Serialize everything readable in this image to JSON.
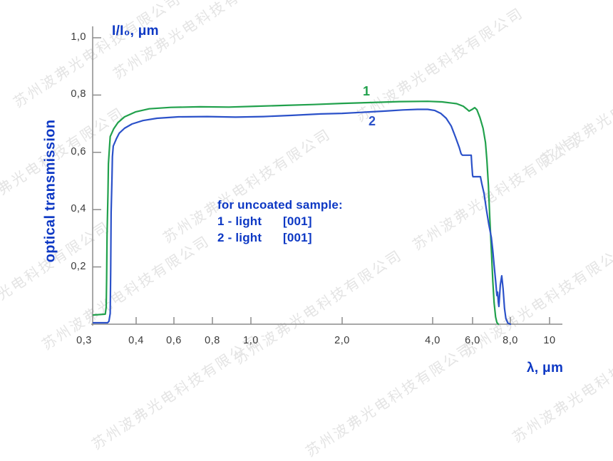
{
  "watermark": {
    "text": "苏州波弗光电科技有限公司"
  },
  "colors": {
    "accent_blue": "#0d38c4",
    "curve1_green": "#21a14c",
    "curve2_blue": "#2b51c9",
    "axis_gray": "#8c8c8c",
    "tick_label_gray": "#3a3a3a",
    "watermark_gray": "#e4e4e4"
  },
  "y_axis": {
    "title": "I/I₀, μm",
    "name": "optical transmission",
    "ticks": [
      {
        "label": "1,0",
        "value": 1.0
      },
      {
        "label": "0,8",
        "value": 0.8
      },
      {
        "label": "0,6",
        "value": 0.6
      },
      {
        "label": "0,4",
        "value": 0.4
      },
      {
        "label": "0,2",
        "value": 0.2
      }
    ]
  },
  "x_axis": {
    "title": "λ, μm",
    "ticks": [
      {
        "label": "0,3",
        "value": 0.3
      },
      {
        "label": "0,4",
        "value": 0.4
      },
      {
        "label": "0,6",
        "value": 0.6
      },
      {
        "label": "0,8",
        "value": 0.8
      },
      {
        "label": "1,0",
        "value": 1.0
      },
      {
        "label": "2,0",
        "value": 2.0
      },
      {
        "label": "4,0",
        "value": 4.0
      },
      {
        "label": "6,0",
        "value": 6.0
      },
      {
        "label": "8,0",
        "value": 8.0
      },
      {
        "label": "10",
        "value": 10
      }
    ]
  },
  "annotation": {
    "heading": "for uncoated sample:",
    "items": [
      {
        "label": "1 - light",
        "value": "[001]"
      },
      {
        "label": "2 - light",
        "value": "[001]"
      }
    ]
  },
  "curve_labels": {
    "curve1": "1",
    "curve2": "2"
  },
  "chart_data": {
    "type": "line",
    "title": "",
    "xlabel": "λ, μm",
    "ylabel": "optical transmission, I/I₀",
    "x_scale": "log-like (ticks 0.3 0.4 0.6 0.8 1.0 2.0 4.0 6.0 8.0 10)",
    "xlim": [
      0.3,
      10
    ],
    "ylim": [
      0,
      1.0
    ],
    "grid": false,
    "legend_position": "inline numbers on curves",
    "series": [
      {
        "name": "1 - light [001] (uncoated sample)",
        "color": "#21a14c",
        "points": [
          [
            0.3,
            0.032
          ],
          [
            0.325,
            0.035
          ],
          [
            0.327,
            0.06
          ],
          [
            0.328,
            0.16
          ],
          [
            0.329,
            0.31
          ],
          [
            0.331,
            0.46
          ],
          [
            0.332,
            0.56
          ],
          [
            0.334,
            0.61
          ],
          [
            0.336,
            0.655
          ],
          [
            0.344,
            0.682
          ],
          [
            0.354,
            0.704
          ],
          [
            0.37,
            0.724
          ],
          [
            0.398,
            0.741
          ],
          [
            0.46,
            0.752
          ],
          [
            0.58,
            0.757
          ],
          [
            0.73,
            0.759
          ],
          [
            0.88,
            0.758
          ],
          [
            1.04,
            0.761
          ],
          [
            1.3,
            0.764
          ],
          [
            1.61,
            0.767
          ],
          [
            2.0,
            0.771
          ],
          [
            2.5,
            0.774
          ],
          [
            3.1,
            0.777
          ],
          [
            3.85,
            0.778
          ],
          [
            4.4,
            0.776
          ],
          [
            5.1,
            0.77
          ],
          [
            5.46,
            0.761
          ],
          [
            5.66,
            0.751
          ],
          [
            5.79,
            0.744
          ],
          [
            5.95,
            0.749
          ],
          [
            6.1,
            0.756
          ],
          [
            6.2,
            0.749
          ],
          [
            6.35,
            0.721
          ],
          [
            6.5,
            0.684
          ],
          [
            6.62,
            0.634
          ],
          [
            6.69,
            0.572
          ],
          [
            6.77,
            0.485
          ],
          [
            6.84,
            0.373
          ],
          [
            6.92,
            0.261
          ],
          [
            7.0,
            0.149
          ],
          [
            7.07,
            0.075
          ],
          [
            7.15,
            0.025
          ],
          [
            7.22,
            0.006
          ],
          [
            7.3,
            0.0
          ]
        ]
      },
      {
        "name": "2 - light [001] (uncoated sample)",
        "color": "#2b51c9",
        "points": [
          [
            0.3,
            0.005
          ],
          [
            0.33,
            0.005
          ],
          [
            0.333,
            0.01
          ],
          [
            0.336,
            0.037
          ],
          [
            0.337,
            0.19
          ],
          [
            0.338,
            0.39
          ],
          [
            0.34,
            0.51
          ],
          [
            0.341,
            0.585
          ],
          [
            0.343,
            0.622
          ],
          [
            0.35,
            0.647
          ],
          [
            0.357,
            0.667
          ],
          [
            0.37,
            0.684
          ],
          [
            0.389,
            0.699
          ],
          [
            0.43,
            0.711
          ],
          [
            0.5,
            0.719
          ],
          [
            0.62,
            0.724
          ],
          [
            0.77,
            0.725
          ],
          [
            0.915,
            0.723
          ],
          [
            1.1,
            0.725
          ],
          [
            1.37,
            0.729
          ],
          [
            1.7,
            0.734
          ],
          [
            2.0,
            0.736
          ],
          [
            2.36,
            0.74
          ],
          [
            2.78,
            0.744
          ],
          [
            3.18,
            0.748
          ],
          [
            3.56,
            0.75
          ],
          [
            3.85,
            0.75
          ],
          [
            4.09,
            0.746
          ],
          [
            4.34,
            0.736
          ],
          [
            4.59,
            0.719
          ],
          [
            4.83,
            0.692
          ],
          [
            5.05,
            0.652
          ],
          [
            5.24,
            0.617
          ],
          [
            5.34,
            0.595
          ],
          [
            5.41,
            0.59
          ],
          [
            5.92,
            0.59
          ],
          [
            5.95,
            0.56
          ],
          [
            6.0,
            0.52
          ],
          [
            6.02,
            0.515
          ],
          [
            6.37,
            0.515
          ],
          [
            6.44,
            0.49
          ],
          [
            6.55,
            0.455
          ],
          [
            6.66,
            0.403
          ],
          [
            6.79,
            0.348
          ],
          [
            6.92,
            0.303
          ],
          [
            7.0,
            0.256
          ],
          [
            7.07,
            0.206
          ],
          [
            7.15,
            0.152
          ],
          [
            7.22,
            0.1
          ],
          [
            7.26,
            0.112
          ],
          [
            7.3,
            0.077
          ],
          [
            7.33,
            0.062
          ],
          [
            7.41,
            0.137
          ],
          [
            7.49,
            0.169
          ],
          [
            7.57,
            0.124
          ],
          [
            7.65,
            0.055
          ],
          [
            7.73,
            0.02
          ],
          [
            7.85,
            0.004
          ],
          [
            8.0,
            0.0
          ]
        ]
      }
    ]
  }
}
